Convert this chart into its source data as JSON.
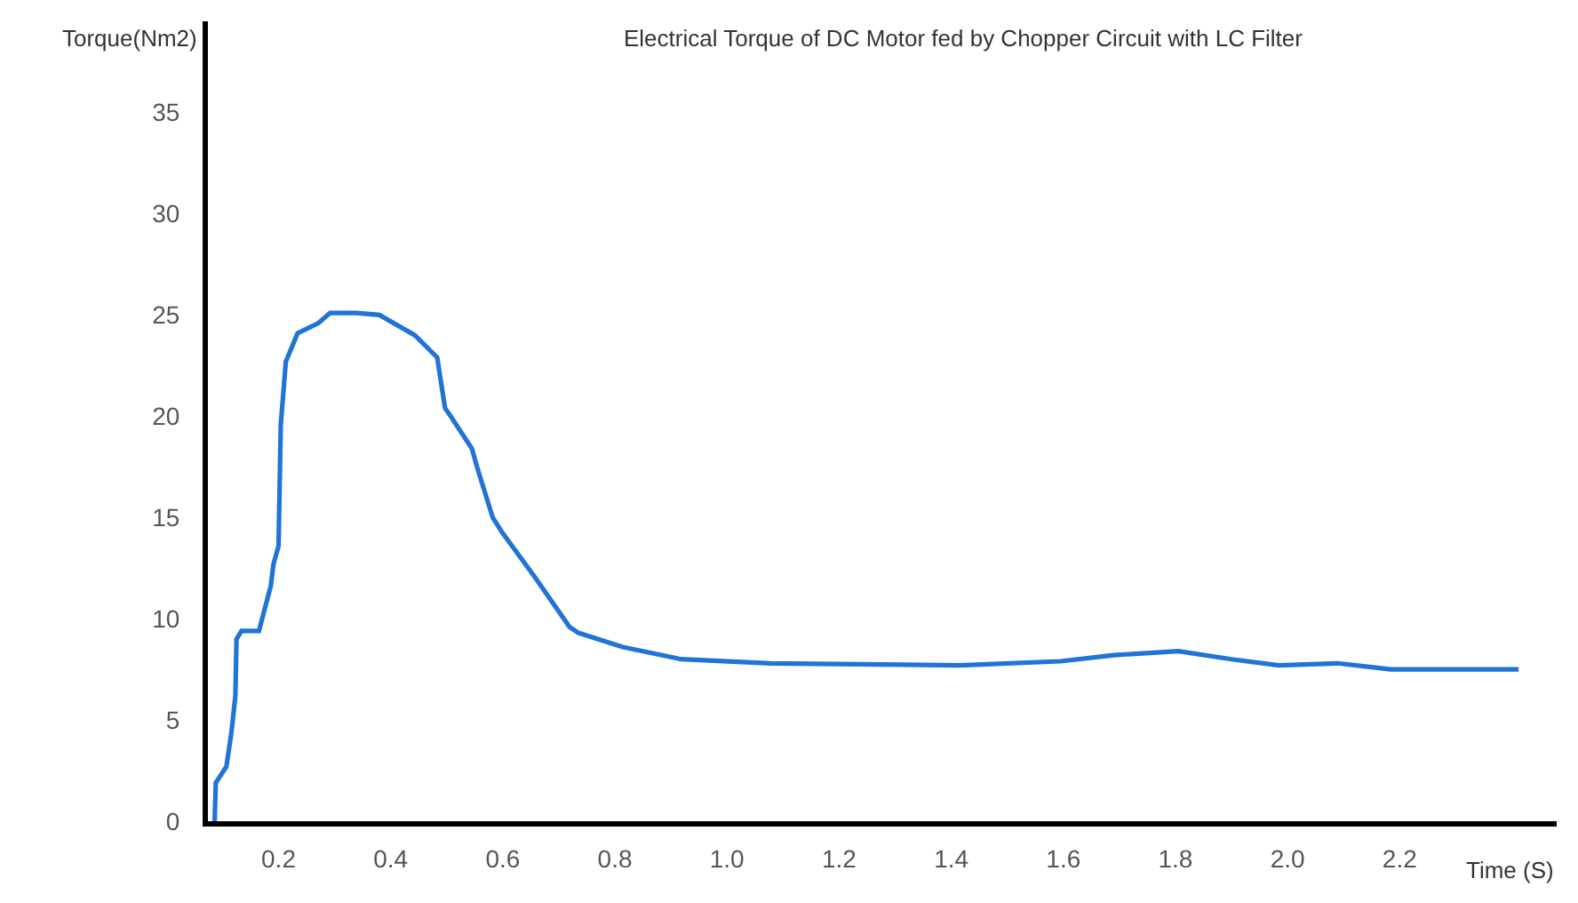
{
  "chart_data": {
    "type": "line",
    "title": "Electrical Torque of DC Motor fed by Chopper Circuit with LC Filter",
    "xlabel": "Time (S)",
    "ylabel": "Torque(Nm2)",
    "x": [
      0.086,
      0.088,
      0.107,
      0.116,
      0.123,
      0.125,
      0.134,
      0.165,
      0.186,
      0.191,
      0.2,
      0.204,
      0.213,
      0.234,
      0.271,
      0.292,
      0.339,
      0.38,
      0.443,
      0.483,
      0.497,
      0.507,
      0.545,
      0.554,
      0.582,
      0.598,
      0.656,
      0.719,
      0.735,
      0.814,
      0.918,
      1.077,
      1.415,
      1.595,
      1.69,
      1.805,
      1.9,
      1.984,
      2.089,
      2.184,
      2.412
    ],
    "series": [
      {
        "color": "#1f74d6",
        "values": [
          0,
          1.9,
          2.7,
          4.4,
          6.2,
          9.0,
          9.4,
          9.4,
          11.6,
          12.7,
          13.6,
          19.6,
          22.7,
          24.1,
          24.6,
          25.1,
          25.1,
          25.0,
          24.0,
          22.9,
          20.4,
          20.0,
          18.4,
          17.5,
          15.0,
          14.3,
          12.1,
          9.6,
          9.3,
          8.6,
          8.0,
          7.8,
          7.7,
          7.9,
          8.2,
          8.4,
          8.0,
          7.7,
          7.8,
          7.5,
          7.5
        ]
      }
    ],
    "xlim": [
      0.074,
      2.48
    ],
    "ylim": [
      0,
      39.5
    ],
    "xticks": [
      0.2,
      0.4,
      0.6,
      0.8,
      {
        "value": 1,
        "label": "1.0"
      },
      1.2,
      1.4,
      1.6,
      1.8,
      {
        "value": 2,
        "label": "2.0"
      },
      2.2
    ],
    "yticks": [
      0,
      5,
      10,
      15,
      20,
      25,
      30,
      35
    ],
    "marker": "none",
    "line_style": "solid"
  }
}
